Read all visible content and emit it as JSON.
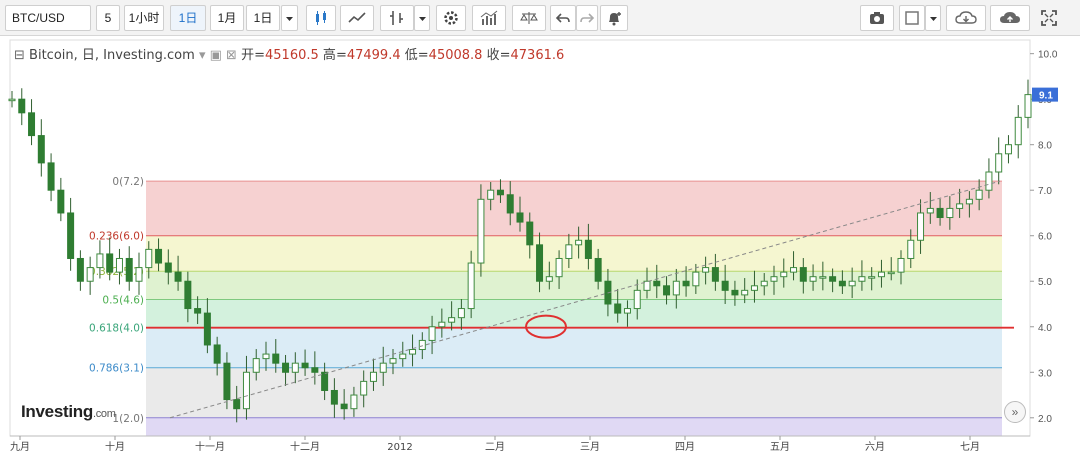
{
  "toolbar": {
    "symbol": "BTC/USD",
    "interval_value": "5",
    "items": [
      {
        "id": "hour",
        "label": "1小时"
      },
      {
        "id": "day",
        "label": "1日",
        "active": true
      },
      {
        "id": "month",
        "label": "1月"
      },
      {
        "id": "day2",
        "label": "1日"
      }
    ],
    "icons": [
      "dropdown-icon",
      "candlestick-icon",
      "line-chart-icon",
      "bar-chart-icon",
      "dropdown-icon",
      "settings-icon",
      "indicators-icon",
      "compare-icon",
      "undo-icon",
      "redo-icon",
      "alert-icon",
      "camera-icon",
      "color-box-icon",
      "dropdown-icon",
      "cloud-download-icon",
      "cloud-upload-icon",
      "fullscreen-icon"
    ]
  },
  "legend": {
    "instrument": "Bitcoin, 日, Investing.com",
    "open_label": "开",
    "open": "45160.5",
    "high_label": "高",
    "high": "47499.4",
    "low_label": "低",
    "low": "45008.8",
    "close_label": "收",
    "close": "47361.6"
  },
  "watermark": {
    "brand": "Investing",
    "suffix": ".com"
  },
  "price_badge": "9.1",
  "colors": {
    "up": "#3f8a3f",
    "down": "#2f7d32",
    "fib_red": "#e03030",
    "zone0": "#f5c9c9",
    "zone1": "#f3f5c8",
    "zone2": "#d9f0c8",
    "zone3": "#cbeed7",
    "zone4": "#d5e9f4",
    "zone5": "#e6e6e6",
    "zone6": "#dad2f2",
    "line0": "#e88f8f",
    "line1": "#e06060",
    "line2": "#b8d86e",
    "line3": "#7fc97f",
    "line4": "#e03030",
    "line5": "#5aa9d6",
    "line6": "#8e82d2",
    "label0": "#777777",
    "label1": "#c0392b",
    "label2": "#8fb53b",
    "label3": "#4caf50",
    "label4": "#3aa57a",
    "label5": "#3d8bc9",
    "label6": "#777777",
    "badge": "#3a6fd8"
  },
  "chart_data": {
    "type": "candlestick",
    "ylim": [
      1.6,
      10.3
    ],
    "y_ticks": [
      "10.0",
      "9.0",
      "8.0",
      "7.0",
      "6.0",
      "5.0",
      "4.0",
      "3.0",
      "2.0"
    ],
    "x_ticks": [
      "九月",
      "十月",
      "十一月",
      "十二月",
      "2012",
      "二月",
      "三月",
      "四月",
      "五月",
      "六月",
      "七月"
    ],
    "fib_levels": [
      {
        "label": "0(7.2)",
        "value": 7.2
      },
      {
        "label": "0.236(6.0)",
        "value": 6.0
      },
      {
        "label": "0.382(5.2)",
        "value": 5.22
      },
      {
        "label": "0.5(4.6)",
        "value": 4.6
      },
      {
        "label": "0.618(4.0)",
        "value": 3.98
      },
      {
        "label": "0.786(3.1)",
        "value": 3.1
      },
      {
        "label": "1(2.0)",
        "value": 2.0
      }
    ],
    "trendline": {
      "from": 2.0,
      "to": 7.2
    },
    "series": [
      9.0,
      8.7,
      8.2,
      7.6,
      7.0,
      6.5,
      5.5,
      5.0,
      5.3,
      5.6,
      5.2,
      5.5,
      5.0,
      5.3,
      5.7,
      5.4,
      5.2,
      5.0,
      4.4,
      4.3,
      3.6,
      3.2,
      2.4,
      2.2,
      3.0,
      3.3,
      3.4,
      3.2,
      3.0,
      3.2,
      3.1,
      3.0,
      2.6,
      2.3,
      2.2,
      2.5,
      2.8,
      3.0,
      3.2,
      3.3,
      3.4,
      3.5,
      3.7,
      4.0,
      4.1,
      4.2,
      4.4,
      5.4,
      6.8,
      7.0,
      6.9,
      6.5,
      6.3,
      5.8,
      5.0,
      5.1,
      5.5,
      5.8,
      5.9,
      5.5,
      5.0,
      4.5,
      4.3,
      4.4,
      4.8,
      5.0,
      4.9,
      4.7,
      5.0,
      4.9,
      5.2,
      5.3,
      5.0,
      4.8,
      4.7,
      4.8,
      4.9,
      5.0,
      5.1,
      5.2,
      5.3,
      5.0,
      5.1,
      5.1,
      5.0,
      4.9,
      5.0,
      5.1,
      5.1,
      5.2,
      5.2,
      5.5,
      5.9,
      6.5,
      6.6,
      6.4,
      6.6,
      6.7,
      6.8,
      7.0,
      7.4,
      7.8,
      8.0,
      8.6,
      9.1
    ]
  }
}
